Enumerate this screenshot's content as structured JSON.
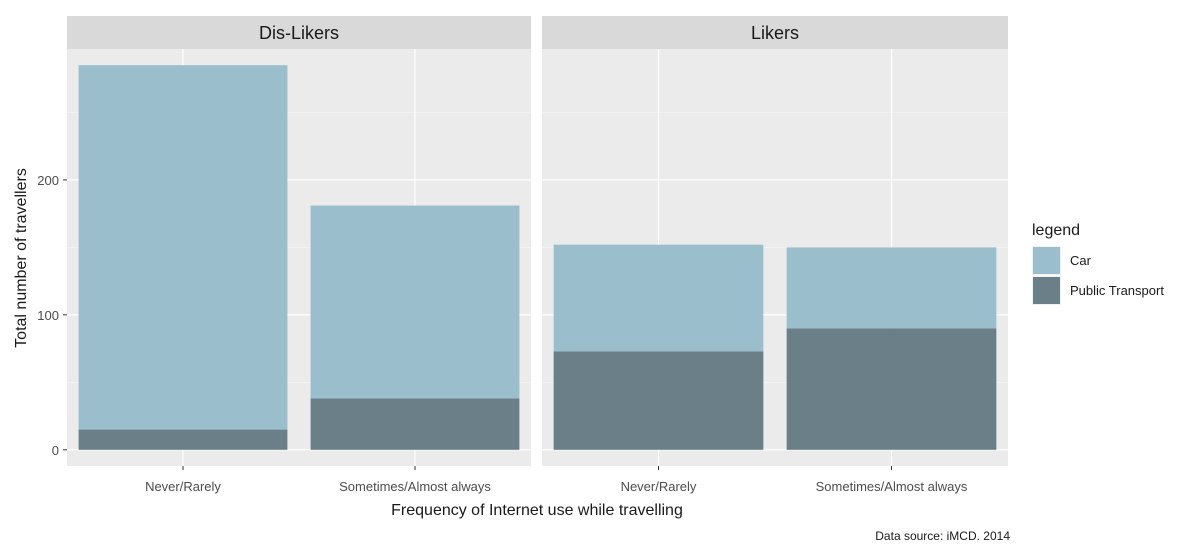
{
  "chart_data": {
    "type": "bar",
    "stacked": true,
    "faceted": true,
    "facets": [
      "Dis-Likers",
      "Likers"
    ],
    "categories": [
      "Never/Rarely",
      "Sometimes/Almost always"
    ],
    "series": [
      {
        "name": "Car",
        "color": "#9bbecd",
        "values": {
          "Dis-Likers": [
            270,
            143
          ],
          "Likers": [
            79,
            60
          ]
        }
      },
      {
        "name": "Public Transport",
        "color": "#6a7f87",
        "values": {
          "Dis-Likers": [
            15,
            38
          ],
          "Likers": [
            73,
            90
          ]
        }
      }
    ],
    "xlabel": "Frequency of Internet use while travelling",
    "ylabel": "Total number of travellers",
    "yticks": [
      0,
      100,
      200
    ],
    "ylim": [
      -12,
      297
    ],
    "legend": {
      "title": "legend",
      "position": "right"
    },
    "caption": "Data source: iMCD. 2014",
    "grid": true,
    "panel_background": "#ebebeb",
    "strip_background": "#d9d9d9"
  }
}
